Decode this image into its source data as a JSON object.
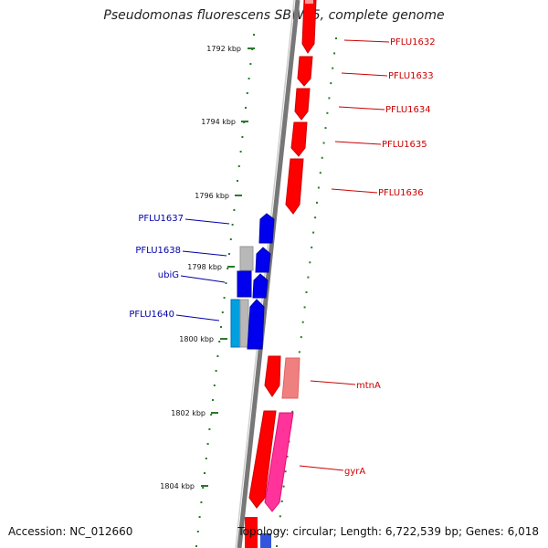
{
  "title": "Pseudomonas fluorescens SBW25, complete genome",
  "footer": {
    "accession": "Accession: NC_012660",
    "topology": "Topology: circular; Length: 6,722,539 bp; Genes: 6,018"
  },
  "colors": {
    "forward_gene": "#ff0000",
    "reverse_gene": "#0000ee",
    "pseudo_forward": "#f08080",
    "pseudo_reverse": "#b0b0b0",
    "rna": "#00a0e0",
    "mauve": "#ff3399",
    "ticks": "#2a7a2a",
    "backbone": "#777777"
  },
  "ticks": [
    {
      "label": "1792 kbp"
    },
    {
      "label": "1794 kbp"
    },
    {
      "label": "1796 kbp"
    },
    {
      "label": "1798 kbp"
    },
    {
      "label": "1800 kbp"
    },
    {
      "label": "1802 kbp"
    },
    {
      "label": "1804 kbp"
    }
  ],
  "gene_labels": [
    {
      "name": "PFLU1632",
      "strand": "forward"
    },
    {
      "name": "PFLU1633",
      "strand": "forward"
    },
    {
      "name": "PFLU1634",
      "strand": "forward"
    },
    {
      "name": "PFLU1635",
      "strand": "forward"
    },
    {
      "name": "PFLU1636",
      "strand": "forward"
    },
    {
      "name": "PFLU1637",
      "strand": "reverse"
    },
    {
      "name": "PFLU1638",
      "strand": "reverse"
    },
    {
      "name": "ubiG",
      "strand": "reverse"
    },
    {
      "name": "PFLU1640",
      "strand": "reverse"
    },
    {
      "name": "mtnA",
      "strand": "forward"
    },
    {
      "name": "gyrA",
      "strand": "forward"
    }
  ]
}
